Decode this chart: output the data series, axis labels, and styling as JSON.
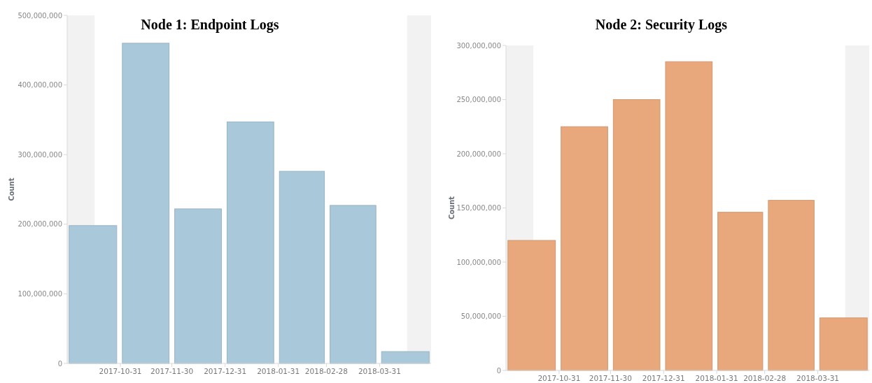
{
  "chart_data": [
    {
      "type": "bar",
      "title": "Node 1: Endpoint Logs",
      "ylabel": "Count",
      "x": [
        "2017-10-15",
        "2017-11-15",
        "2017-12-15",
        "2018-01-15",
        "2018-02-14",
        "2018-03-15",
        "2018-04-15"
      ],
      "series": [
        {
          "color": "#a9c8da",
          "values": [
            198000000,
            460000000,
            222000000,
            347000000,
            276000000,
            227000000,
            17000000
          ]
        }
      ],
      "xlim": [
        "2017-09-30",
        "2018-04-30"
      ],
      "xticks": [
        "2017-10-31",
        "2017-11-30",
        "2017-12-31",
        "2018-01-31",
        "2018-02-28",
        "2018-03-31"
      ],
      "ylim": [
        0,
        500000000
      ],
      "yticks": [
        {
          "value": 0,
          "label": "0"
        },
        {
          "value": 100000000,
          "label": "100,000,000"
        },
        {
          "value": 200000000,
          "label": "200,000,000"
        },
        {
          "value": 300000000,
          "label": "300,000,000"
        },
        {
          "value": 400000000,
          "label": "400,000,000"
        },
        {
          "value": 500000000,
          "label": "500,000,000"
        }
      ],
      "bands": [
        {
          "axis": "x",
          "from": "2017-09-30",
          "to": "2017-10-16",
          "color": "#f2f2f2"
        },
        {
          "axis": "x",
          "from": "2018-04-16",
          "to": "2018-04-30",
          "color": "#f2f2f2"
        }
      ],
      "grid": false
    },
    {
      "type": "bar",
      "title": "Node 2: Security Logs",
      "ylabel": "Count",
      "x": [
        "2017-10-15",
        "2017-11-15",
        "2017-12-15",
        "2018-01-15",
        "2018-02-14",
        "2018-03-15",
        "2018-04-15"
      ],
      "series": [
        {
          "color": "#e8a87c",
          "values": [
            120000000,
            225000000,
            250000000,
            285000000,
            146000000,
            157000000,
            48500000
          ]
        }
      ],
      "xlim": [
        "2017-09-30",
        "2018-04-30"
      ],
      "xticks": [
        "2017-10-31",
        "2017-11-30",
        "2017-12-31",
        "2018-01-31",
        "2018-02-28",
        "2018-03-31"
      ],
      "ylim": [
        0,
        300000000
      ],
      "yticks": [
        {
          "value": 0,
          "label": "0"
        },
        {
          "value": 50000000,
          "label": "50,000,000"
        },
        {
          "value": 100000000,
          "label": "100,000,000"
        },
        {
          "value": 150000000,
          "label": "150,000,000"
        },
        {
          "value": 200000000,
          "label": "200,000,000"
        },
        {
          "value": 250000000,
          "label": "250,000,000"
        },
        {
          "value": 300000000,
          "label": "300,000,000"
        }
      ],
      "bands": [
        {
          "axis": "x",
          "from": "2017-09-30",
          "to": "2017-10-16",
          "color": "#f2f2f2"
        },
        {
          "axis": "x",
          "from": "2018-04-16",
          "to": "2018-04-30",
          "color": "#f2f2f2"
        }
      ],
      "grid": false
    }
  ]
}
